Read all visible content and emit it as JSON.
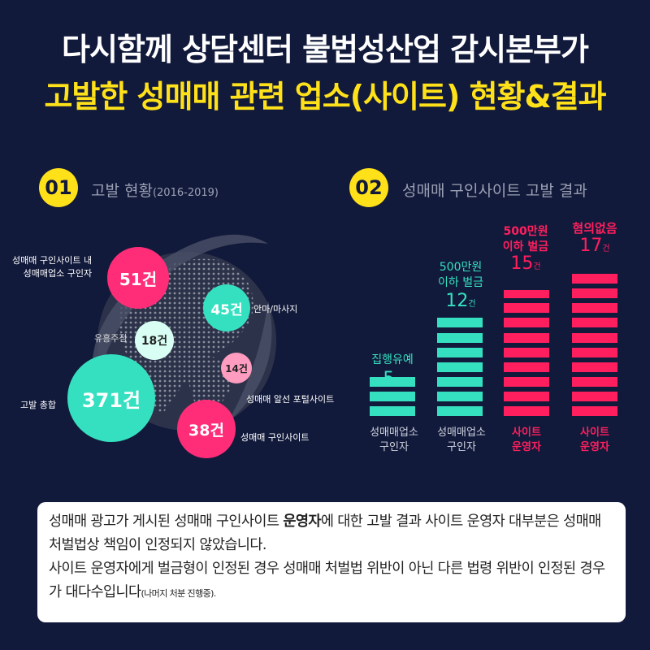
{
  "title": {
    "line1": "다시함께 상담센터 불법성산업 감시본부가",
    "line2": "고발한 성매매 관련 업소(사이트) 현황&결과"
  },
  "section1": {
    "number": "01",
    "title": "고발 현황",
    "years": "(2016-2019)",
    "bubbles": [
      {
        "label": "고발 총합",
        "value": "371건",
        "color": "#35e0c0"
      },
      {
        "label": "성매매 구인사이트 내\n성매매업소 구인자",
        "value": "51건",
        "color": "#ff2d78"
      },
      {
        "label": "안마/마사지",
        "value": "45건",
        "color": "#35e0c0"
      },
      {
        "label": "유흥주점",
        "value": "18건",
        "color": "#d9fff4"
      },
      {
        "label": "성매매 알선 포털사이트",
        "value": "14건",
        "color": "#ff9cc0"
      },
      {
        "label": "성매매 구인사이트",
        "value": "38건",
        "color": "#ff2d78"
      }
    ]
  },
  "section2": {
    "number": "02",
    "title": "성매매 구인사이트 고발 결과",
    "chart_data": {
      "type": "bar",
      "categories": [
        "집행유예",
        "500만원 이하 벌금",
        "500만원 이하 벌금",
        "혐의없음"
      ],
      "values": [
        5,
        12,
        15,
        17
      ],
      "unit": "건",
      "groups": [
        "성매매업소 구인자",
        "성매매업소 구인자",
        "사이트 운영자",
        "사이트 운영자"
      ],
      "colors": [
        "#35e0c0",
        "#35e0c0",
        "#ff1f5e",
        "#ff1f5e"
      ]
    },
    "labels": {
      "bar1_amount": "집행유예",
      "bar2_amount_1": "500만원",
      "bar2_amount_2": "이하 벌금",
      "bar3_amount_1": "500만원",
      "bar3_amount_2": "이하 벌금",
      "bar4_amount": "혐의없음",
      "bar1_count": "5",
      "bar2_count": "12",
      "bar3_count": "15",
      "bar4_count": "17",
      "unit": "건",
      "bar1_cat_1": "성매매업소",
      "bar1_cat_2": "구인자",
      "bar2_cat_1": "성매매업소",
      "bar2_cat_2": "구인자",
      "bar3_cat_1": "사이트",
      "bar3_cat_2": "운영자",
      "bar4_cat_1": "사이트",
      "bar4_cat_2": "운영자"
    }
  },
  "note": {
    "part1": "성매매 광고가 게시된 성매매 구인사이트 ",
    "bold": "운영자",
    "part2": "에 대한 고발 결과 사이트 운영자 대부분은 성매매 처벌법상 책임이 인정되지 않았습니다.",
    "line3": "사이트 운영자에게 벌금형이 인정된  경우 성매매 처벌법 위반이 아닌  다른 법령 위반이 인정된 경우가 대다수입니다",
    "small": "(나머지 처분 진행중)."
  }
}
